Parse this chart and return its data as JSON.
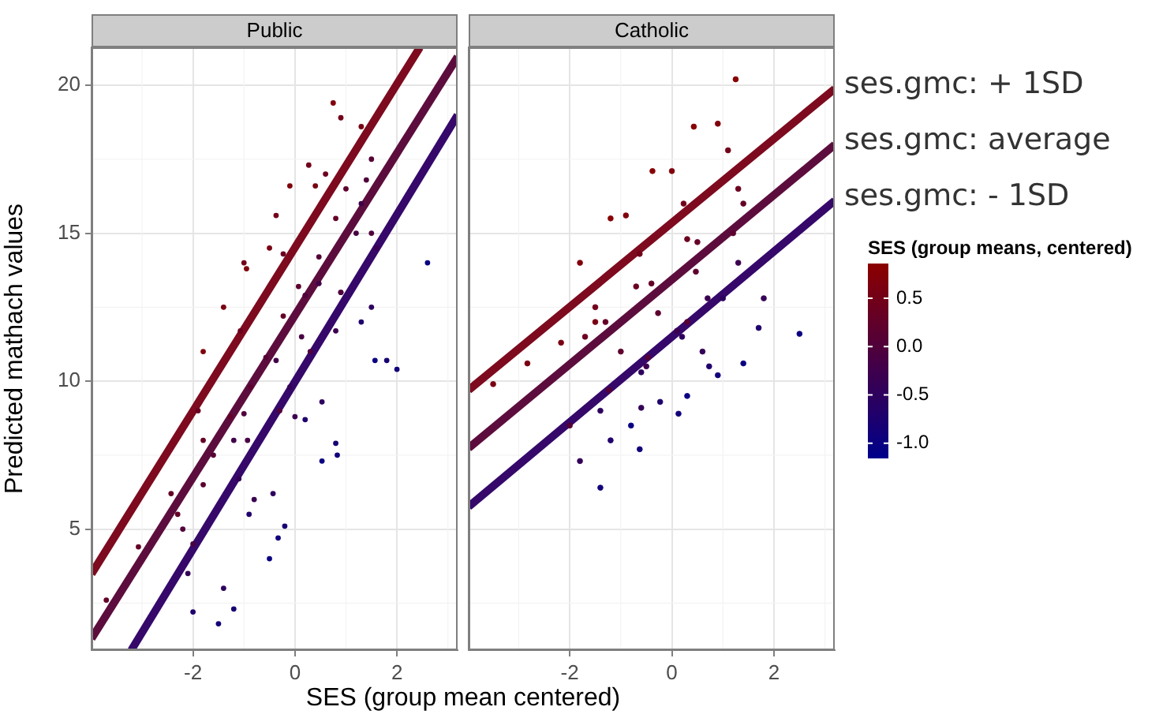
{
  "chart_data": [
    {
      "type": "scatter",
      "title": "Public",
      "xlabel": "SES (group mean centered)",
      "ylabel": "Predicted mathach values",
      "xlim": [
        -3.99,
        3.19
      ],
      "ylim": [
        0.91,
        21.28
      ],
      "xticks": [
        -2,
        0,
        2
      ],
      "yticks": [
        5,
        10,
        15,
        20
      ],
      "grid": true,
      "legend": false,
      "series": [
        {
          "type": "scatter",
          "marker": "circle",
          "colors": [
            "#80000b",
            "#80000b",
            "#80000b",
            "#80000b",
            "#790012",
            "#790012",
            "#790012",
            "#790012",
            "#720019",
            "#720019",
            "#720019",
            "#720019",
            "#640027",
            "#640027",
            "#640027",
            "#640027",
            "#50003b",
            "#50003b",
            "#50003b",
            "#50003b",
            "#490042",
            "#490042",
            "#490042",
            "#490042",
            "#5d002e",
            "#5d002e",
            "#5d002e",
            "#5d002e",
            "#560035",
            "#560035",
            "#560035",
            "#560035",
            "#420049",
            "#420049",
            "#420049",
            "#420049",
            "#340057",
            "#340057",
            "#340057",
            "#340057",
            "#1f006c",
            "#1f006c",
            "#1f006c",
            "#1f006c",
            "#11007a",
            "#11007a",
            "#11007a",
            "#11007a",
            "#180073",
            "#180073",
            "#180073",
            "#180073",
            "#0a0081",
            "#0a0081",
            "#0a0081",
            "#0a0081",
            "#2d005e",
            "#2d005e",
            "#2d005e",
            "#2d005e",
            "#3b0050",
            "#3b0050",
            "#3b0050",
            "#3b0050",
            "#640027",
            "#640027",
            "#640027",
            "#640027",
            "#50003b",
            "#50003b",
            "#50003b",
            "#50003b",
            "#6b0020",
            "#6b0020",
            "#6b0020",
            "#6b0020"
          ],
          "x": [
            -1.8,
            -0.95,
            -0.1,
            0.75,
            -1.4,
            -0.5,
            0.4,
            1.3,
            -1.0,
            -0.37,
            0.27,
            0.9,
            -3.7,
            -3.07,
            -2.43,
            -1.8,
            -2.2,
            -1.0,
            0.2,
            1.4,
            -2.0,
            -0.93,
            0.13,
            1.2,
            -1.8,
            -0.87,
            0.07,
            1.0,
            -1.6,
            -0.57,
            0.47,
            1.5,
            -1.2,
            -0.37,
            0.47,
            1.3,
            -2.1,
            -1.1,
            -0.1,
            0.9,
            -2.0,
            -0.9,
            0.2,
            1.3,
            -1.5,
            -0.33,
            0.83,
            2.0,
            -1.2,
            -0.2,
            0.8,
            1.8,
            -0.5,
            0.53,
            1.57,
            2.6,
            -1.4,
            -0.43,
            0.53,
            1.5,
            -0.8,
            0,
            0.8,
            1.6,
            -2.3,
            -1.27,
            -0.23,
            0.8,
            -0.3,
            0.3,
            0.9,
            1.5,
            -1.9,
            -1.07,
            -0.23,
            0.6
          ],
          "values": [
            11.0,
            13.8,
            16.6,
            19.4,
            12.5,
            14.5,
            16.6,
            18.6,
            14.0,
            15.6,
            17.3,
            18.9,
            2.6,
            4.4,
            6.2,
            8.0,
            5.0,
            8.9,
            12.9,
            16.8,
            4.5,
            8.0,
            11.5,
            15.0,
            6.5,
            9.8,
            13.2,
            16.5,
            7.5,
            10.8,
            14.2,
            17.5,
            8.0,
            10.7,
            13.3,
            16.0,
            3.5,
            6.7,
            9.8,
            13.0,
            2.2,
            5.5,
            8.7,
            12.0,
            1.8,
            4.7,
            7.5,
            10.4,
            2.3,
            5.1,
            7.9,
            10.7,
            4.0,
            7.3,
            10.7,
            14.0,
            3.0,
            6.2,
            9.3,
            12.5,
            6.0,
            8.8,
            11.7,
            14.5,
            5.5,
            8.8,
            12.2,
            15.5,
            9.0,
            11.0,
            13.0,
            15.0,
            9.0,
            11.7,
            14.3,
            17.0
          ]
        },
        {
          "type": "line",
          "x": [
            -3.99,
            2.45
          ],
          "values": [
            3.49,
            21.28
          ],
          "color": "#7d0a1e"
        },
        {
          "type": "line",
          "x": [
            -3.99,
            3.19
          ],
          "values": [
            1.3,
            20.96
          ],
          "color": "#5c0d3d"
        },
        {
          "type": "line",
          "x": [
            -3.21,
            3.19
          ],
          "values": [
            0.91,
            18.99
          ],
          "color": "#35086a"
        }
      ]
    },
    {
      "type": "scatter",
      "title": "Catholic",
      "xlim": [
        -3.98,
        3.19
      ],
      "ylim": [
        0.91,
        21.28
      ],
      "xticks": [
        -2,
        0,
        2
      ],
      "yticks": [
        5,
        10,
        15,
        20
      ],
      "grid": true,
      "legend": false,
      "tick_labels": "x",
      "clabel": "SES (group means, centered)",
      "clim": [
        -1.15,
        0.86
      ],
      "cticks": [
        {
          "value": -1.0,
          "label": "-1.0"
        },
        -0.5,
        {
          "value": 0.0,
          "label": "0.0"
        },
        0.5
      ],
      "series": [
        {
          "type": "scatter",
          "marker": "circle",
          "colors": [
            "#870004",
            "#870004",
            "#870004",
            "#870004",
            "#80000b",
            "#80000b",
            "#80000b",
            "#80000b",
            "#720019",
            "#720019",
            "#720019",
            "#720019",
            "#6b0020",
            "#6b0020",
            "#6b0020",
            "#6b0020",
            "#640027",
            "#640027",
            "#640027",
            "#640027",
            "#5d002e",
            "#5d002e",
            "#5d002e",
            "#5d002e",
            "#790012",
            "#790012",
            "#790012",
            "#790012",
            "#560035",
            "#560035",
            "#560035",
            "#560035",
            "#340057",
            "#340057",
            "#340057",
            "#340057",
            "#11007a",
            "#11007a",
            "#11007a",
            "#11007a",
            "#1f006c",
            "#1f006c",
            "#1f006c",
            "#1f006c",
            "#0a0081",
            "#0a0081",
            "#0a0081",
            "#0a0081",
            "#3b0050",
            "#3b0050",
            "#3b0050",
            "#3b0050",
            "#2d005e",
            "#2d005e",
            "#2d005e",
            "#2d005e"
          ],
          "x": [
            -1.2,
            -0.38,
            0.43,
            1.25,
            -1.8,
            -0.9,
            0,
            0.9,
            -1.5,
            -0.63,
            0.23,
            1.1,
            -1.7,
            -0.7,
            0.3,
            1.3,
            -1.3,
            -0.4,
            0.5,
            1.4,
            -1.0,
            -0.27,
            0.47,
            1.2,
            -3.5,
            -2.83,
            -2.17,
            -1.5,
            -2.0,
            -1.23,
            -0.47,
            0.3,
            -1.8,
            -0.6,
            0.6,
            1.8,
            -1.4,
            -0.63,
            0.13,
            0.9,
            -1.2,
            -0.23,
            0.73,
            1.7,
            -0.8,
            0.3,
            1.4,
            2.5,
            -0.5,
            0.1,
            0.7,
            1.3,
            -1.4,
            -0.6,
            0.2,
            1.0
          ],
          "values": [
            15.5,
            17.1,
            18.6,
            20.2,
            14.0,
            15.6,
            17.1,
            18.7,
            12.5,
            14.3,
            16.0,
            17.8,
            11.5,
            13.2,
            14.8,
            16.5,
            12.0,
            13.3,
            14.7,
            16.0,
            11.0,
            12.3,
            13.7,
            15.0,
            9.9,
            10.6,
            11.3,
            12.0,
            8.5,
            9.7,
            10.8,
            12.0,
            7.3,
            9.1,
            11.0,
            12.8,
            6.4,
            7.7,
            8.9,
            10.2,
            8.0,
            9.3,
            10.5,
            11.8,
            8.5,
            9.5,
            10.6,
            11.6,
            10.5,
            11.7,
            12.8,
            14.0,
            9.0,
            10.3,
            11.5,
            12.8
          ],
          "cvalues": [
            0.8,
            0.8,
            0.8,
            0.8,
            0.7,
            0.7,
            0.7,
            0.7,
            0.5,
            0.5,
            0.5,
            0.5,
            0.4,
            0.4,
            0.4,
            0.4,
            0.3,
            0.3,
            0.3,
            0.3,
            0.2,
            0.2,
            0.2,
            0.2,
            0.6,
            0.6,
            0.6,
            0.6,
            0.1,
            0.1,
            0.1,
            0.1,
            -0.4,
            -0.4,
            -0.4,
            -0.4,
            -0.9,
            -0.9,
            -0.9,
            -0.9,
            -0.7,
            -0.7,
            -0.7,
            -0.7,
            -1.0,
            -1.0,
            -1.0,
            -1.0,
            -0.3,
            -0.3,
            -0.3,
            -0.3,
            -0.5,
            -0.5,
            -0.5,
            -0.5
          ]
        },
        {
          "type": "line",
          "name": "ses.gmc: + 1SD",
          "x": [
            -3.98,
            3.19
          ],
          "values": [
            9.7,
            19.88
          ],
          "color": "#7d0a1e"
        },
        {
          "type": "line",
          "name": "ses.gmc: average",
          "x": [
            -3.98,
            3.19
          ],
          "values": [
            7.74,
            17.99
          ],
          "color": "#5c0d3d"
        },
        {
          "type": "line",
          "name": "ses.gmc: - 1SD",
          "x": [
            -3.98,
            3.19
          ],
          "values": [
            5.76,
            16.1
          ],
          "color": "#35086a"
        }
      ]
    }
  ]
}
